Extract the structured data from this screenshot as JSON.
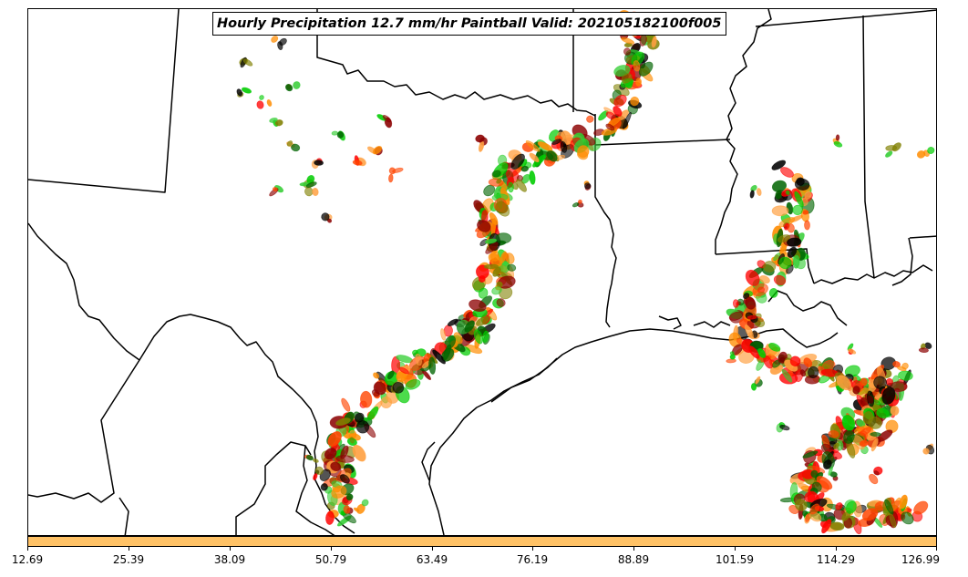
{
  "title": "Hourly Precipitation 12.7 mm/hr Paintball Valid: 202105182100f005",
  "colorbar": {
    "color": "#ffc266",
    "tick_labels": [
      "12.69",
      "25.39",
      "38.09",
      "50.79",
      "63.49",
      "76.19",
      "88.89",
      "101.59",
      "114.29",
      "126.99"
    ]
  },
  "member_colors": [
    "#ff8c00",
    "#ff0000",
    "#00cc00",
    "#8b0000",
    "#808000",
    "#006400",
    "#ff4500",
    "#000000",
    "#ffa040",
    "#32cd32"
  ]
}
